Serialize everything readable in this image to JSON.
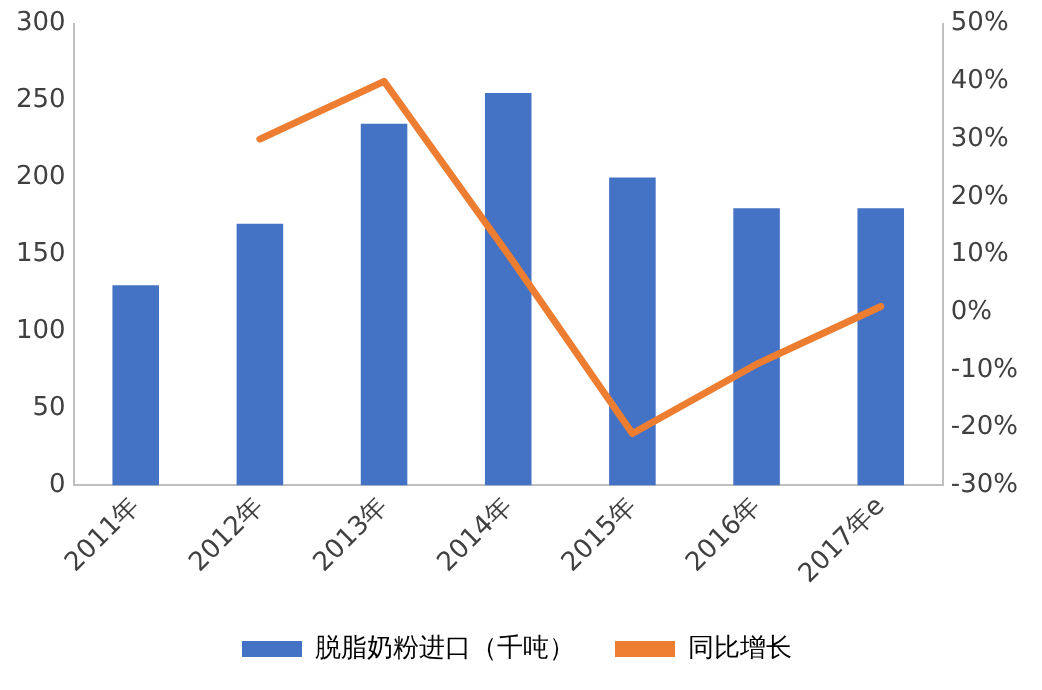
{
  "chart_data": {
    "type": "bar",
    "categories": [
      "2011年",
      "2012年",
      "2013年",
      "2014年",
      "2015年",
      "2016年",
      "2017年e"
    ],
    "series": [
      {
        "name": "脱脂奶粉进口（千吨）",
        "color": "#4472c4",
        "values": [
          130,
          170,
          235,
          255,
          200,
          180,
          180
        ]
      },
      {
        "name": "同比增长",
        "type": "line",
        "axis": "y2",
        "color": "#ed7d31",
        "values": [
          null,
          30,
          40,
          10,
          -21,
          -9,
          1
        ]
      }
    ],
    "ylim": [
      0,
      300
    ],
    "yticks": [
      0,
      50,
      100,
      150,
      200,
      250,
      300
    ],
    "y2lim": [
      -30,
      50
    ],
    "y2ticks": [
      {
        "value": -30,
        "label": "-30%"
      },
      {
        "value": -20,
        "label": "-20%"
      },
      {
        "value": -10,
        "label": "-10%"
      },
      {
        "value": 0,
        "label": "0%"
      },
      {
        "value": 10,
        "label": "10%"
      },
      {
        "value": 20,
        "label": "20%"
      },
      {
        "value": 30,
        "label": "30%"
      },
      {
        "value": 40,
        "label": "40%"
      },
      {
        "value": 50,
        "label": "50%"
      }
    ],
    "grid": false,
    "legend": "bottom",
    "marker": "none",
    "line_style": "solid"
  }
}
